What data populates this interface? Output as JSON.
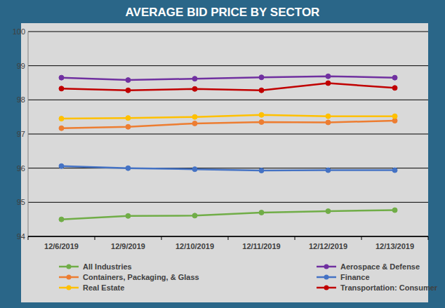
{
  "chart_data": {
    "type": "line",
    "title": "AVERAGE BID PRICE BY SECTOR",
    "categories": [
      "12/6/2019",
      "12/9/2019",
      "12/10/2019",
      "12/11/2019",
      "12/12/2019",
      "12/13/2019"
    ],
    "series": [
      {
        "name": "All Industries",
        "color": "#70ad47",
        "marker": "circle",
        "values": [
          94.5,
          94.6,
          94.61,
          94.7,
          94.74,
          94.77
        ]
      },
      {
        "name": "Aerospace & Defense",
        "color": "#7030a0",
        "marker": "circle",
        "values": [
          98.65,
          98.58,
          98.62,
          98.66,
          98.69,
          98.65
        ]
      },
      {
        "name": "Containers, Packaging, & Glass",
        "color": "#ed7d31",
        "marker": "circle",
        "values": [
          97.17,
          97.21,
          97.31,
          97.35,
          97.34,
          97.39
        ]
      },
      {
        "name": "Finance",
        "color": "#4472c4",
        "marker": "circle",
        "values": [
          96.06,
          96.0,
          95.97,
          95.93,
          95.94,
          95.94
        ]
      },
      {
        "name": "Real Estate",
        "color": "#ffc000",
        "marker": "circle",
        "values": [
          97.45,
          97.47,
          97.5,
          97.56,
          97.52,
          97.52
        ]
      },
      {
        "name": "Transportation: Consumer",
        "color": "#c00000",
        "marker": "circle",
        "values": [
          98.33,
          98.28,
          98.32,
          98.28,
          98.49,
          98.35
        ]
      }
    ],
    "ylim": [
      94,
      100
    ],
    "yticks": [
      94,
      95,
      96,
      97,
      98,
      99,
      100
    ],
    "grid": true,
    "legend": "bottom"
  }
}
